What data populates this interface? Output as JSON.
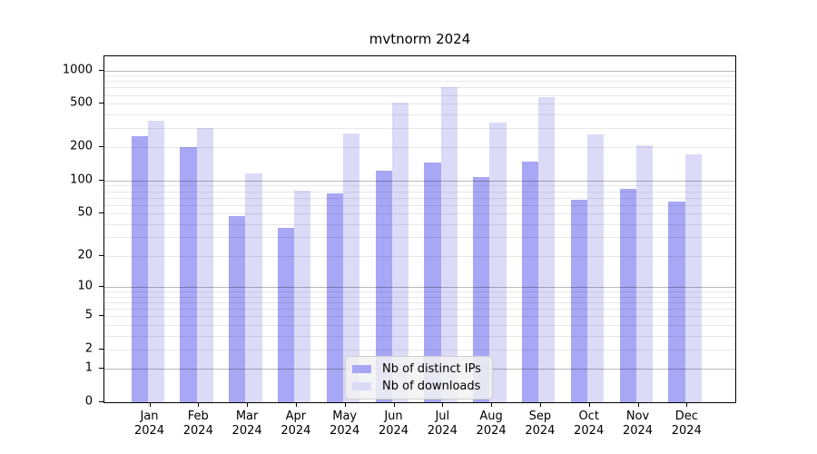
{
  "title": "mvtnorm 2024",
  "chart_data": {
    "type": "bar",
    "title": "mvtnorm 2024",
    "categories": [
      "Jan",
      "Feb",
      "Mar",
      "Apr",
      "May",
      "Jun",
      "Jul",
      "Aug",
      "Sep",
      "Oct",
      "Nov",
      "Dec"
    ],
    "year_label": "2024",
    "series": [
      {
        "name": "Nb of distinct IPs",
        "color": "#a7a7f5",
        "values": [
          255,
          200,
          47,
          37,
          76,
          124,
          147,
          107,
          150,
          67,
          84,
          64
        ]
      },
      {
        "name": "Nb of downloads",
        "color": "#dbdbf8",
        "values": [
          350,
          300,
          117,
          81,
          267,
          512,
          700,
          335,
          570,
          262,
          210,
          173
        ]
      }
    ],
    "y_ticks": [
      0,
      1,
      2,
      5,
      10,
      20,
      50,
      100,
      200,
      500,
      1000
    ],
    "scale": "log1p",
    "ylim": [
      0,
      1400
    ],
    "grid": "horizontal-log",
    "legend_position": "bottom-center"
  }
}
